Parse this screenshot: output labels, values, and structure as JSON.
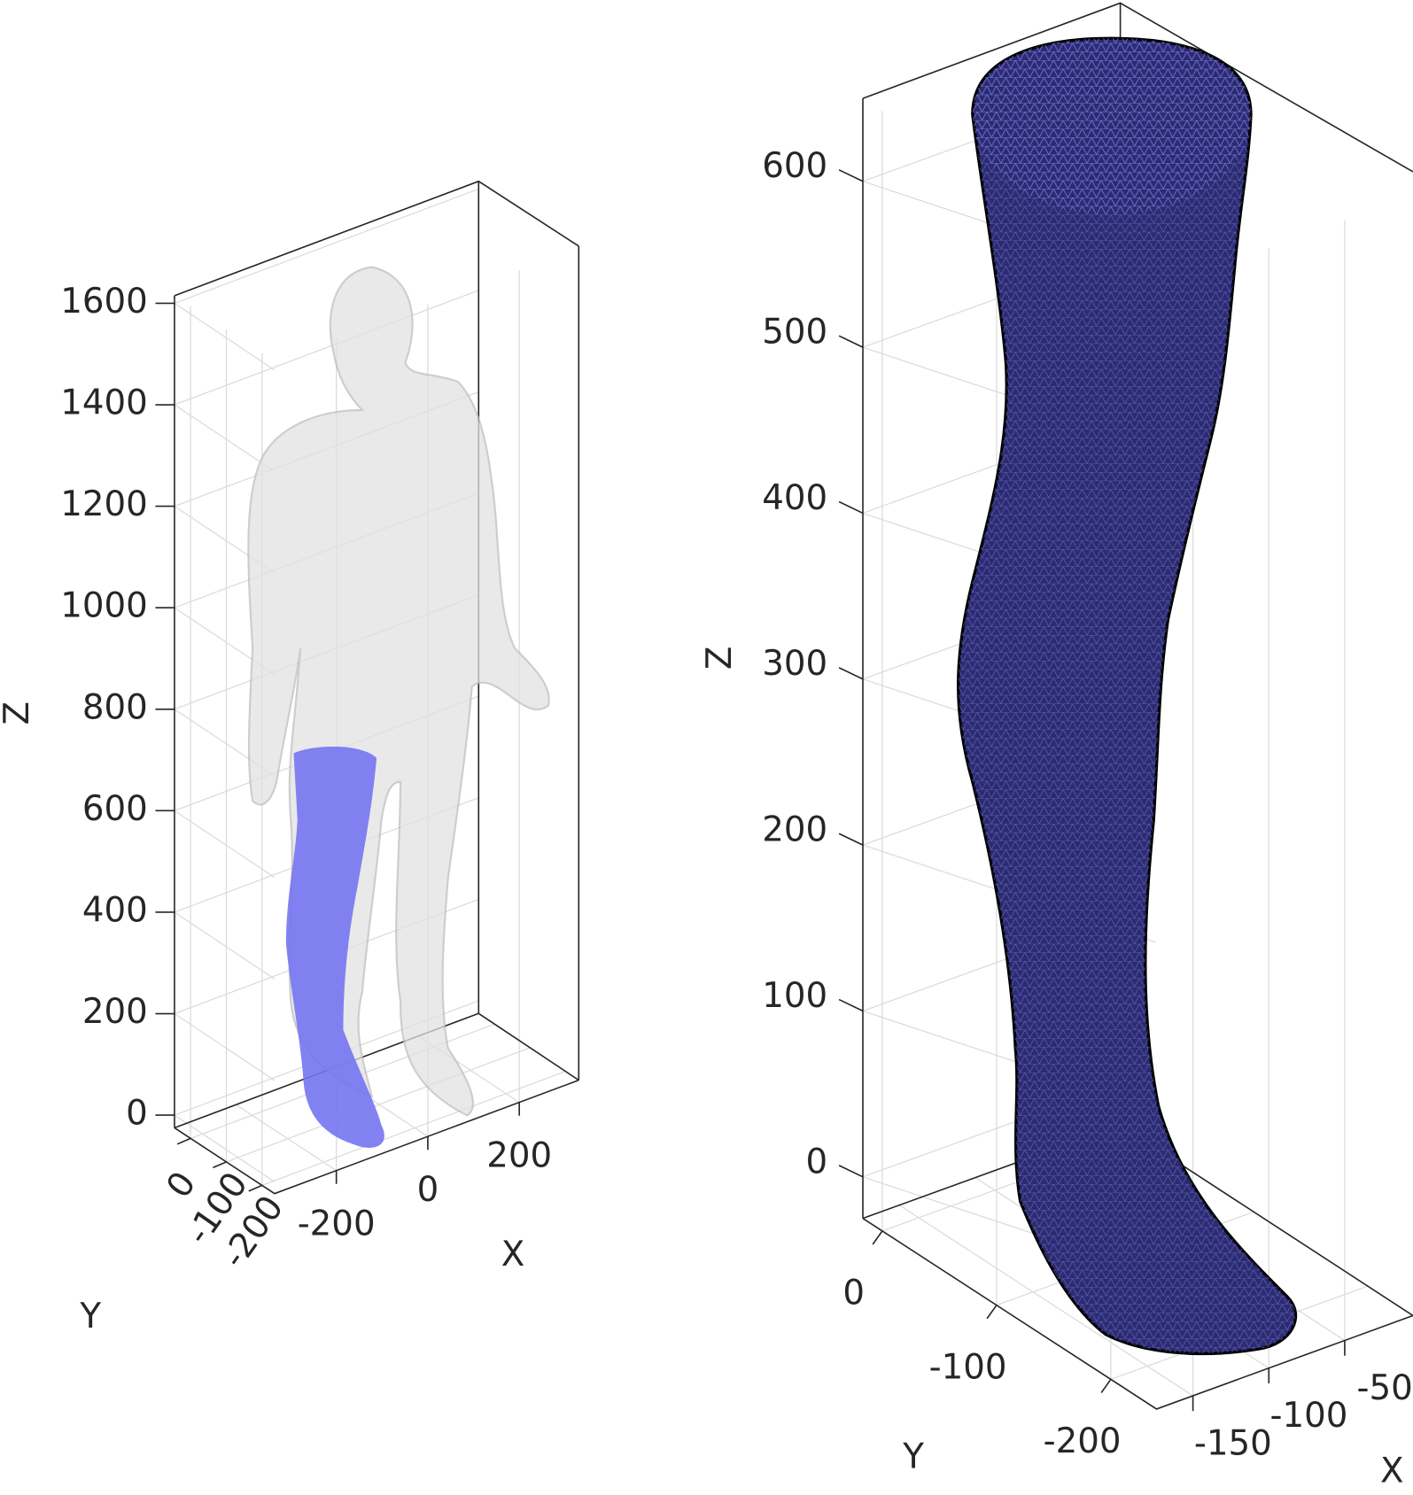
{
  "chart_data": [
    {
      "type": "surface3d",
      "xlabel": "X",
      "ylabel": "Y",
      "zlabel": "Z",
      "xlim": [
        -335,
        330
      ],
      "ylim": [
        -235,
        45
      ],
      "zlim": [
        -25,
        1615
      ],
      "xticks": [
        -200,
        0,
        200
      ],
      "yticks": [
        0,
        -100,
        -200
      ],
      "zticks": [
        0,
        200,
        400,
        600,
        800,
        1000,
        1200,
        1400,
        1600
      ],
      "grid": true,
      "color": "#7474f2"
    },
    {
      "type": "surface3d",
      "xlabel": "X",
      "ylabel": "Y",
      "zlabel": "Z",
      "xlim": [
        -174,
        -5
      ],
      "ylim": [
        -240,
        17
      ],
      "zlim": [
        -25,
        650
      ],
      "xticks": [
        -150,
        -100,
        -50
      ],
      "yticks": [
        0,
        -100,
        -200
      ],
      "zticks": [
        0,
        100,
        200,
        300,
        400,
        500,
        600
      ],
      "grid": true,
      "color": "#2b2b6e"
    }
  ]
}
